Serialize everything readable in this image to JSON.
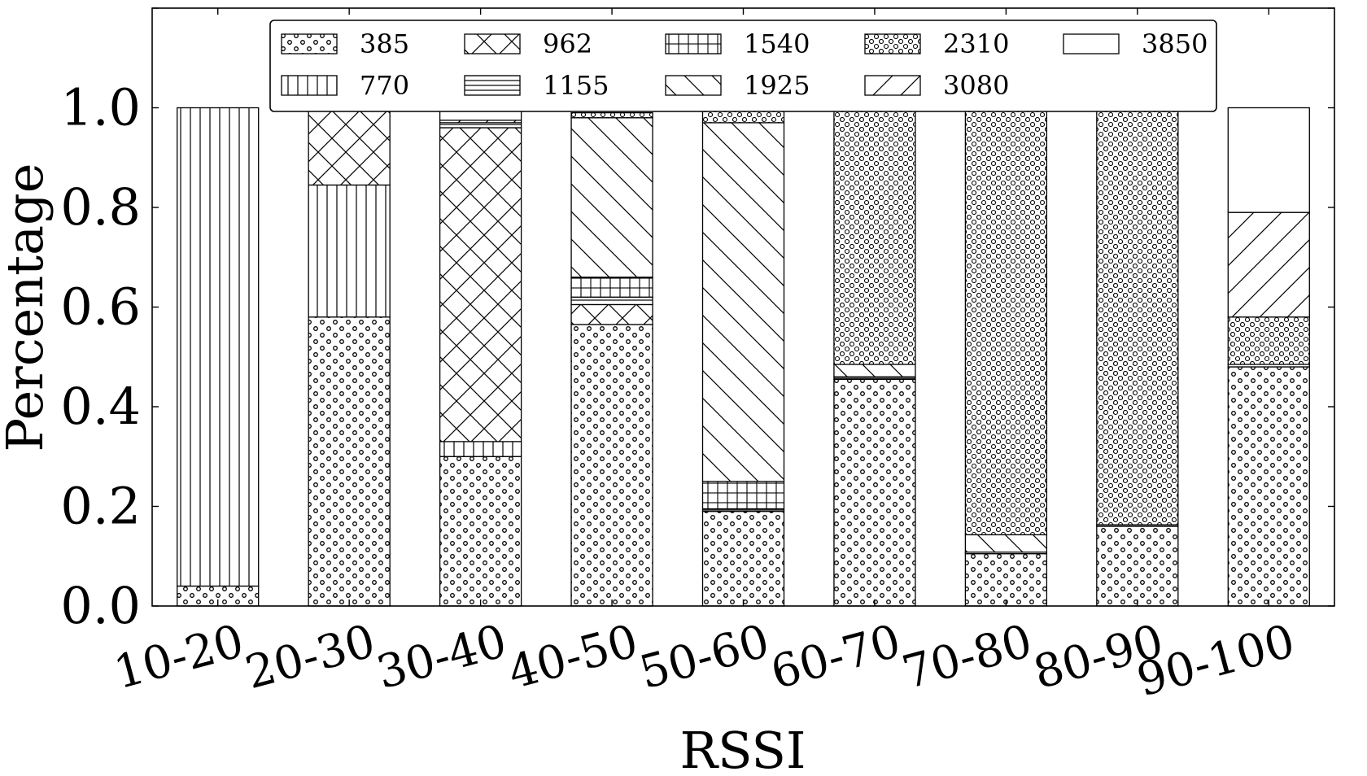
{
  "chart_data": {
    "type": "bar",
    "stacked": true,
    "xlabel": "RSSI",
    "ylabel": "Percentage",
    "ylim": [
      0,
      1.2
    ],
    "yticks": [
      "0.0",
      "0.2",
      "0.4",
      "0.6",
      "0.8",
      "1.0"
    ],
    "ytick_values": [
      0,
      0.2,
      0.4,
      0.6,
      0.8,
      1.0
    ],
    "grid": false,
    "legend_position": "top-center",
    "legend_columns": 5,
    "categories": [
      "10-20",
      "20-30",
      "30-40",
      "40-50",
      "50-60",
      "60-70",
      "70-80",
      "80-90",
      "90-100"
    ],
    "series": [
      {
        "name": "385",
        "pattern": "dots",
        "values": [
          0.04,
          0.58,
          0.3,
          0.565,
          0.19,
          0.455,
          0.105,
          0.16,
          0.48
        ]
      },
      {
        "name": "770",
        "pattern": "vertical",
        "values": [
          0.96,
          0.265,
          0.03,
          0.0,
          0.0,
          0.0,
          0.0,
          0.0,
          0.0
        ]
      },
      {
        "name": "962",
        "pattern": "crosshatch",
        "values": [
          0.0,
          0.15,
          0.63,
          0.04,
          0.0,
          0.0,
          0.0,
          0.0,
          0.0
        ]
      },
      {
        "name": "1155",
        "pattern": "horizontal",
        "values": [
          0.0,
          0.005,
          0.01,
          0.015,
          0.005,
          0.005,
          0.003,
          0.003,
          0.005
        ]
      },
      {
        "name": "1540",
        "pattern": "grid",
        "values": [
          0.0,
          0.0,
          0.0,
          0.04,
          0.055,
          0.0,
          0.0,
          0.0,
          0.0
        ]
      },
      {
        "name": "1925",
        "pattern": "back-diagonal",
        "values": [
          0.0,
          0.0,
          0.0,
          0.32,
          0.72,
          0.025,
          0.035,
          0.0,
          0.0
        ]
      },
      {
        "name": "2310",
        "pattern": "circles",
        "values": [
          0.0,
          0.0,
          0.0,
          0.01,
          0.03,
          0.515,
          0.857,
          0.837,
          0.095
        ]
      },
      {
        "name": "3080",
        "pattern": "forward-diagonal",
        "values": [
          0.0,
          0.0,
          0.005,
          0.0,
          0.0,
          0.0,
          0.0,
          0.0,
          0.21
        ]
      },
      {
        "name": "3850",
        "pattern": "empty",
        "values": [
          0.0,
          0.0,
          0.025,
          0.0,
          0.0,
          0.0,
          0.0,
          0.0,
          0.21
        ]
      }
    ],
    "legend_order": [
      "385",
      "962",
      "1540",
      "2310",
      "3850",
      "770",
      "1155",
      "1925",
      "3080"
    ]
  }
}
